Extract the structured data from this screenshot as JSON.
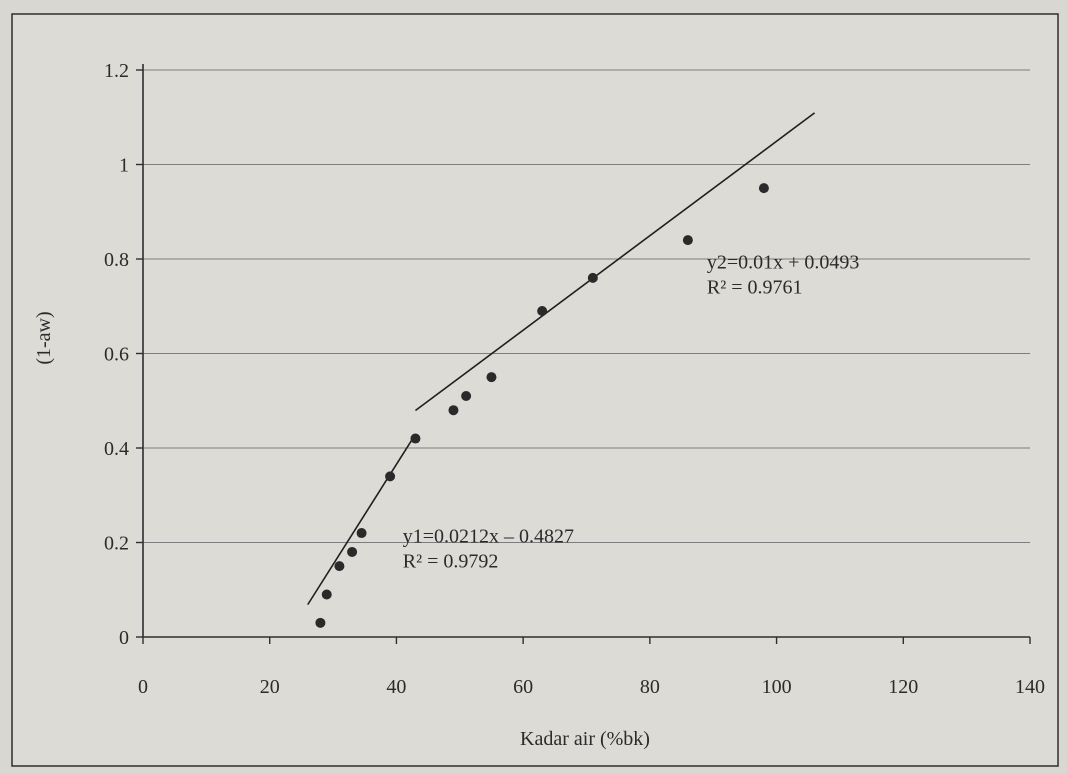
{
  "chart_data": {
    "type": "scatter",
    "xlabel": "Kadar air (%bk)",
    "ylabel": "(1-aw)",
    "xlim": [
      0,
      140
    ],
    "ylim": [
      0,
      1.2
    ],
    "x_ticks": [
      0,
      20,
      40,
      60,
      80,
      100,
      120,
      140
    ],
    "y_ticks": [
      0,
      0.2,
      0.4,
      0.6,
      0.8,
      1,
      1.2
    ],
    "y_tick_labels": [
      "0",
      "0.2",
      "0.4",
      "0.6",
      "0.8",
      "1",
      "1.2"
    ],
    "grid": "horizontal",
    "series": [
      {
        "x": [
          28,
          29,
          31,
          33,
          34.5,
          39,
          43,
          49,
          51,
          55,
          63,
          71,
          86,
          98
        ],
        "y": [
          0.03,
          0.09,
          0.15,
          0.18,
          0.22,
          0.34,
          0.42,
          0.48,
          0.51,
          0.55,
          0.69,
          0.76,
          0.84,
          0.95
        ]
      }
    ],
    "trendlines": [
      {
        "slope": 0.0212,
        "intercept": -0.4827,
        "x_range": [
          26,
          43
        ]
      },
      {
        "slope": 0.01,
        "intercept": 0.0493,
        "x_range": [
          43,
          106
        ]
      }
    ],
    "annotations": [
      {
        "line1": "y1=0.0212x – 0.4827",
        "line2": "R² = 0.9792",
        "x": 41,
        "y": 0.2
      },
      {
        "line1": "y2=0.01x + 0.0493",
        "line2": "R² = 0.9761",
        "x": 89,
        "y": 0.78
      }
    ]
  }
}
